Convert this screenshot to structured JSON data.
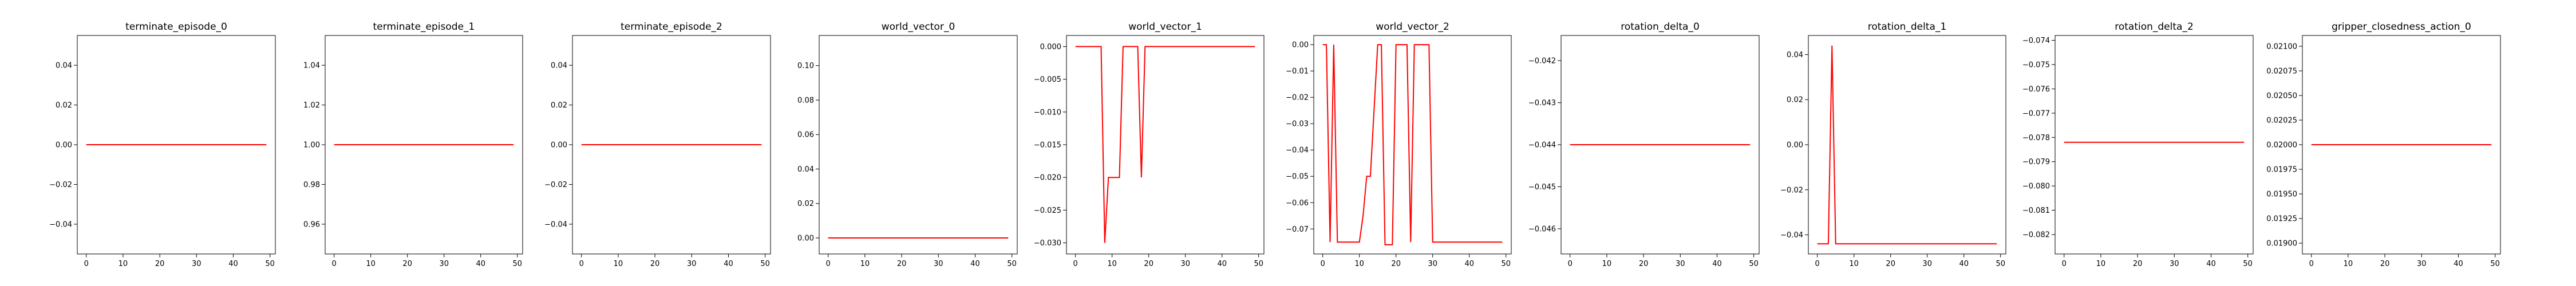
{
  "chart_data": [
    {
      "type": "line",
      "title": "terminate_episode_0",
      "xlim": [
        -2.45,
        51.45
      ],
      "ylim": [
        -0.055,
        0.055
      ],
      "xticks": [
        0,
        10,
        20,
        30,
        40,
        50
      ],
      "yticks": [
        -0.04,
        -0.02,
        0.0,
        0.02,
        0.04
      ],
      "ytick_labels": [
        "−0.04",
        "−0.02",
        "0.00",
        "0.02",
        "0.04"
      ],
      "series": [
        {
          "color": "#ff0000",
          "x": [
            0,
            49
          ],
          "y": [
            0,
            0
          ]
        }
      ]
    },
    {
      "type": "line",
      "title": "terminate_episode_1",
      "xlim": [
        -2.45,
        51.45
      ],
      "ylim": [
        0.945,
        1.055
      ],
      "xticks": [
        0,
        10,
        20,
        30,
        40,
        50
      ],
      "yticks": [
        0.96,
        0.98,
        1.0,
        1.02,
        1.04
      ],
      "ytick_labels": [
        "0.96",
        "0.98",
        "1.00",
        "1.02",
        "1.04"
      ],
      "series": [
        {
          "color": "#ff0000",
          "x": [
            0,
            49
          ],
          "y": [
            1,
            1
          ]
        }
      ]
    },
    {
      "type": "line",
      "title": "terminate_episode_2",
      "xlim": [
        -2.45,
        51.45
      ],
      "ylim": [
        -0.055,
        0.055
      ],
      "xticks": [
        0,
        10,
        20,
        30,
        40,
        50
      ],
      "yticks": [
        -0.04,
        -0.02,
        0.0,
        0.02,
        0.04
      ],
      "ytick_labels": [
        "−0.04",
        "−0.02",
        "0.00",
        "0.02",
        "0.04"
      ],
      "series": [
        {
          "color": "#ff0000",
          "x": [
            0,
            49
          ],
          "y": [
            0,
            0
          ]
        }
      ]
    },
    {
      "type": "line",
      "title": "world_vector_0",
      "xlim": [
        -2.45,
        51.45
      ],
      "ylim": [
        -0.0093,
        0.1175
      ],
      "xticks": [
        0,
        10,
        20,
        30,
        40,
        50
      ],
      "yticks": [
        0.0,
        0.02,
        0.04,
        0.06,
        0.08,
        0.1
      ],
      "ytick_labels": [
        "0.00",
        "0.02",
        "0.04",
        "0.06",
        "0.08",
        "0.10"
      ],
      "series": [
        {
          "color": "#ff0000",
          "x": [
            0,
            1,
            2,
            3,
            4,
            5,
            6,
            7,
            8,
            9,
            10,
            11,
            12,
            13,
            14,
            15,
            16,
            17,
            18,
            19,
            20,
            21,
            22,
            23,
            24,
            25,
            26,
            27,
            28,
            28.5,
            29,
            30,
            31,
            32,
            33,
            34,
            35,
            36,
            37,
            38,
            39,
            40,
            41,
            42,
            43,
            44,
            45,
            46,
            47,
            48,
            49
          ],
          "y": [
            0.0,
            0.0,
            0.0,
            0.0,
            0.0,
            0.0,
            0.0,
            0.0,
            0.0,
            0.0,
            0.0,
            0.0,
            0.0,
            0.0,
            0.0,
            0.0,
            0.0,
            0.0,
            0.0,
            0.0,
            0.0,
            0.0,
            0.0,
            0.0,
            0.0,
            0.0,
            0.0,
            0.0,
            0.0,
            0.0,
            0.0,
            0.0,
            0.0,
            0.0,
            0.0,
            0.0,
            0.0,
            0.0,
            0.0,
            0.0,
            0.0,
            0.0,
            0.0,
            0.0,
            0.0,
            0.0,
            0.0,
            0.0,
            0.0,
            0.0,
            0.0
          ]
        }
      ]
    },
    {
      "type": "line",
      "title": "world_vector_1",
      "xlim": [
        -2.45,
        51.45
      ],
      "ylim": [
        -0.0317,
        0.0017
      ],
      "xticks": [
        0,
        10,
        20,
        30,
        40,
        50
      ],
      "yticks": [
        -0.03,
        -0.025,
        -0.02,
        -0.015,
        -0.01,
        -0.005,
        0.0
      ],
      "ytick_labels": [
        "−0.030",
        "−0.025",
        "−0.020",
        "−0.015",
        "−0.010",
        "−0.005",
        "0.000"
      ],
      "series": [
        {
          "color": "#ff0000",
          "x": [
            0,
            7,
            8,
            9,
            12,
            13,
            17,
            18,
            19,
            49
          ],
          "y": [
            0.0,
            0.0,
            -0.03,
            -0.02,
            -0.02,
            0.0,
            0.0,
            -0.02,
            0.0,
            0.0
          ]
        }
      ]
    },
    {
      "type": "line",
      "title": "world_vector_2",
      "xlim": [
        -2.45,
        51.45
      ],
      "ylim": [
        -0.0795,
        0.0035
      ],
      "xticks": [
        0,
        10,
        20,
        30,
        40,
        50
      ],
      "yticks": [
        -0.07,
        -0.06,
        -0.05,
        -0.04,
        -0.03,
        -0.02,
        -0.01,
        0.0
      ],
      "ytick_labels": [
        "−0.07",
        "−0.06",
        "−0.05",
        "−0.04",
        "−0.03",
        "−0.02",
        "−0.01",
        "0.00"
      ],
      "series": [
        {
          "color": "#ff0000",
          "x": [
            0,
            1,
            2,
            3,
            4,
            10,
            11,
            12,
            13,
            15,
            16,
            17,
            18,
            19,
            20,
            21,
            23,
            24,
            25,
            26,
            27,
            29,
            30,
            31,
            32,
            35,
            36,
            49
          ],
          "y": [
            0.0,
            0.0,
            -0.075,
            0.0,
            -0.075,
            -0.075,
            -0.065,
            -0.05,
            -0.05,
            0.0,
            0.0,
            -0.076,
            -0.076,
            -0.076,
            0.0,
            0.0,
            0.0,
            -0.075,
            0.0,
            0.0,
            0.0,
            0.0,
            -0.075,
            -0.075,
            -0.075,
            -0.075,
            -0.075,
            -0.075
          ]
        }
      ]
    },
    {
      "type": "line",
      "title": "rotation_delta_0",
      "xlim": [
        -2.45,
        51.45
      ],
      "ylim": [
        -0.0466,
        -0.0414
      ],
      "xticks": [
        0,
        10,
        20,
        30,
        40,
        50
      ],
      "yticks": [
        -0.046,
        -0.045,
        -0.044,
        -0.043,
        -0.042
      ],
      "ytick_labels": [
        "−0.046",
        "−0.045",
        "−0.044",
        "−0.043",
        "−0.042"
      ],
      "series": [
        {
          "color": "#ff0000",
          "x": [
            0,
            49
          ],
          "y": [
            -0.044,
            -0.044
          ]
        }
      ]
    },
    {
      "type": "line",
      "title": "rotation_delta_1",
      "xlim": [
        -2.45,
        51.45
      ],
      "ylim": [
        -0.0485,
        0.0485
      ],
      "xticks": [
        0,
        10,
        20,
        30,
        40,
        50
      ],
      "yticks": [
        -0.04,
        -0.02,
        0.0,
        0.02,
        0.04
      ],
      "ytick_labels": [
        "−0.04",
        "−0.02",
        "0.00",
        "0.02",
        "0.04"
      ],
      "series": [
        {
          "color": "#ff0000",
          "x": [
            0,
            3,
            4,
            5,
            49
          ],
          "y": [
            -0.044,
            -0.044,
            0.044,
            -0.044,
            -0.044
          ]
        }
      ]
    },
    {
      "type": "line",
      "title": "rotation_delta_2",
      "xlim": [
        -2.45,
        51.45
      ],
      "ylim": [
        -0.0828,
        -0.0738
      ],
      "xticks": [
        0,
        10,
        20,
        30,
        40,
        50
      ],
      "yticks": [
        -0.082,
        -0.081,
        -0.08,
        -0.079,
        -0.078,
        -0.077,
        -0.076,
        -0.075,
        -0.074
      ],
      "ytick_labels": [
        "−0.082",
        "−0.081",
        "−0.080",
        "−0.079",
        "−0.078",
        "−0.077",
        "−0.076",
        "−0.075",
        "−0.074"
      ],
      "series": [
        {
          "color": "#ff0000",
          "x": [
            0,
            49
          ],
          "y": [
            -0.0782,
            -0.0782
          ]
        }
      ]
    },
    {
      "type": "line",
      "title": "gripper_closedness_action_0",
      "xlim": [
        -2.45,
        51.45
      ],
      "ylim": [
        0.01889,
        0.02111
      ],
      "xticks": [
        0,
        10,
        20,
        30,
        40,
        50
      ],
      "yticks": [
        0.019,
        0.01925,
        0.0195,
        0.01975,
        0.02,
        0.02025,
        0.0205,
        0.02075,
        0.021
      ],
      "ytick_labels": [
        "0.01900",
        "0.01925",
        "0.01950",
        "0.01975",
        "0.02000",
        "0.02025",
        "0.02050",
        "0.02075",
        "0.02100"
      ],
      "series": [
        {
          "color": "#ff0000",
          "x": [
            0,
            49
          ],
          "y": [
            0.02,
            0.02
          ]
        }
      ]
    }
  ]
}
